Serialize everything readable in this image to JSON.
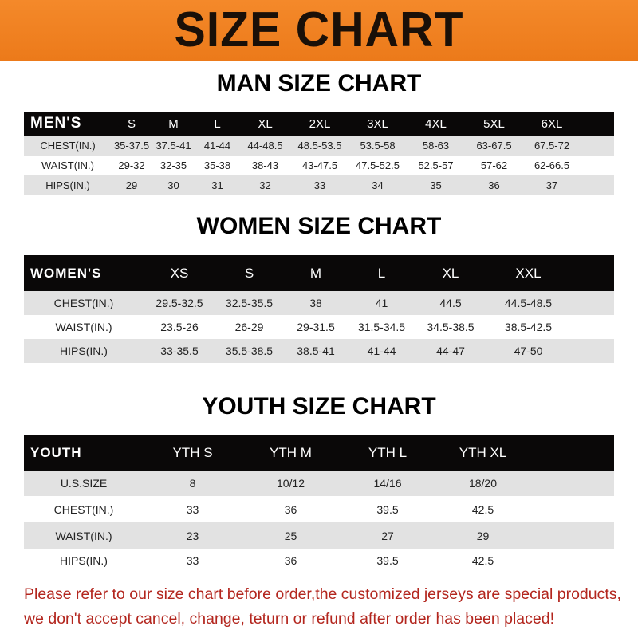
{
  "banner_title": "SIZE CHART",
  "men": {
    "title": "MAN SIZE CHART",
    "header": [
      "MEN'S",
      "S",
      "M",
      "L",
      "XL",
      "2XL",
      "3XL",
      "4XL",
      "5XL",
      "6XL"
    ],
    "rows": [
      [
        "CHEST(IN.)",
        "35-37.5",
        "37.5-41",
        "41-44",
        "44-48.5",
        "48.5-53.5",
        "53.5-58",
        "58-63",
        "63-67.5",
        "67.5-72"
      ],
      [
        "WAIST(IN.)",
        "29-32",
        "32-35",
        "35-38",
        "38-43",
        "43-47.5",
        "47.5-52.5",
        "52.5-57",
        "57-62",
        "62-66.5"
      ],
      [
        "HIPS(IN.)",
        "29",
        "30",
        "31",
        "32",
        "33",
        "34",
        "35",
        "36",
        "37"
      ]
    ]
  },
  "women": {
    "title": "WOMEN SIZE CHART",
    "header": [
      "WOMEN'S",
      "XS",
      "S",
      "M",
      "L",
      "XL",
      "XXL"
    ],
    "rows": [
      [
        "CHEST(IN.)",
        "29.5-32.5",
        "32.5-35.5",
        "38",
        "41",
        "44.5",
        "44.5-48.5"
      ],
      [
        "WAIST(IN.)",
        "23.5-26",
        "26-29",
        "29-31.5",
        "31.5-34.5",
        "34.5-38.5",
        "38.5-42.5"
      ],
      [
        "HIPS(IN.)",
        "33-35.5",
        "35.5-38.5",
        "38.5-41",
        "41-44",
        "44-47",
        "47-50"
      ]
    ]
  },
  "youth": {
    "title": "YOUTH SIZE CHART",
    "header": [
      "YOUTH",
      "YTH S",
      "YTH M",
      "YTH L",
      "YTH XL"
    ],
    "rows": [
      [
        "U.S.SIZE",
        "8",
        "10/12",
        "14/16",
        "18/20"
      ],
      [
        "CHEST(IN.)",
        "33",
        "36",
        "39.5",
        "42.5"
      ],
      [
        "WAIST(IN.)",
        "23",
        "25",
        "27",
        "29"
      ],
      [
        "HIPS(IN.)",
        "33",
        "36",
        "39.5",
        "42.5"
      ]
    ]
  },
  "notice": [
    "Please refer to our size chart before order,the customized jerseys are special products,",
    "we don't accept cancel, change, teturn or refund after order has been placed!"
  ],
  "colors": {
    "banner": "#ef801f",
    "header_row": "#0a0808",
    "stripe": "#e2e2e2",
    "notice": "#b3261e"
  }
}
